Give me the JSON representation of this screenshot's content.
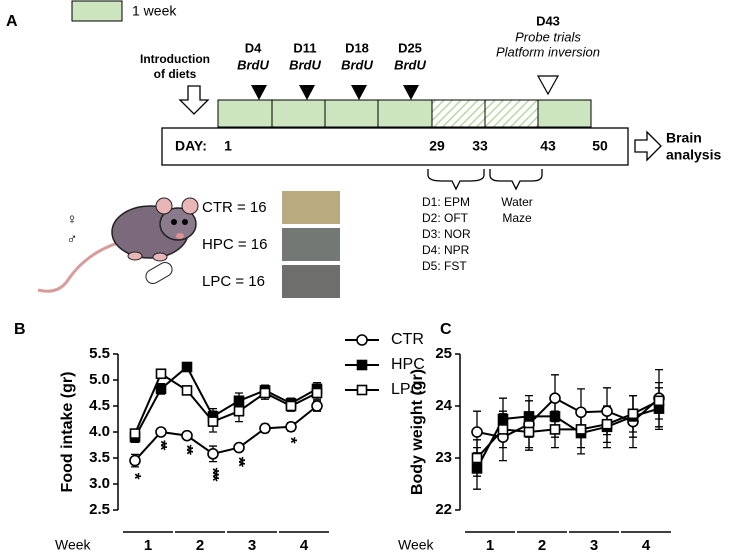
{
  "panel_labels": [
    "A",
    "B",
    "C"
  ],
  "timeline_legend": {
    "text": "1 week",
    "color": "#cde5bf"
  },
  "intro": [
    "Introduction",
    "of diets"
  ],
  "injections": [
    {
      "day": "D4",
      "drug": "BrdU"
    },
    {
      "day": "D11",
      "drug": "BrdU"
    },
    {
      "day": "D18",
      "drug": "BrdU"
    },
    {
      "day": "D25",
      "drug": "BrdU"
    }
  ],
  "probe": {
    "day": "D43",
    "lines": [
      "Probe trials",
      "Platform inversion"
    ]
  },
  "timeline": {
    "label": "DAY:",
    "days": [
      "1",
      "29",
      "33",
      "43",
      "50"
    ]
  },
  "outcome": [
    "Brain",
    "analysis"
  ],
  "behavior_tests": [
    "D1: EPM",
    "D2: OFT",
    "D3: NOR",
    "D4: NPR",
    "D5: FST"
  ],
  "water_maze": [
    "Water",
    "Maze"
  ],
  "groups": [
    "CTR = 16",
    "HPC = 16",
    "LPC = 16"
  ],
  "sexes": [
    "♀",
    "♂"
  ],
  "chart_data": [
    {
      "type": "line",
      "y_label": "Food intake (gr)",
      "categories": [
        null,
        null,
        null,
        null,
        null,
        null,
        null,
        null
      ],
      "x_group_title": "Week",
      "x_groups": [
        "1",
        "2",
        "3",
        "4"
      ],
      "ylim": [
        2.5,
        5.5
      ],
      "yticks": [
        2.5,
        {
          "value": 3,
          "label": "3.0"
        },
        3.5,
        {
          "value": 4,
          "label": "4.0"
        },
        4.5,
        {
          "value": 5,
          "label": "5.0"
        },
        5.5
      ],
      "legend": "top-right",
      "series": [
        {
          "name": "CTR",
          "color": "#000000",
          "marker": "circle",
          "marker_fill": "#ffffff",
          "values": [
            3.45,
            4.0,
            3.93,
            3.58,
            3.7,
            4.07,
            4.1,
            4.5
          ],
          "errors": [
            0.12,
            0.04,
            0.06,
            0.15,
            0.06,
            0.08,
            0.08,
            0.1
          ]
        },
        {
          "name": "HPC",
          "color": "#000000",
          "marker": "square",
          "marker_fill": "#000000",
          "values": [
            3.9,
            4.83,
            5.25,
            4.3,
            4.6,
            4.8,
            4.55,
            4.83
          ],
          "errors": [
            0.1,
            0.1,
            0.08,
            0.15,
            0.15,
            0.1,
            0.1,
            0.12
          ]
        },
        {
          "name": "LPC",
          "color": "#000000",
          "marker": "square",
          "marker_fill": "#ffffff",
          "values": [
            3.97,
            5.12,
            4.8,
            4.2,
            4.4,
            4.75,
            4.5,
            4.75
          ],
          "errors": [
            0.08,
            0.05,
            0.05,
            0.2,
            0.2,
            0.12,
            0.1,
            0.12
          ]
        }
      ],
      "significance": [
        "*",
        "**",
        "**",
        "***",
        "**",
        null,
        "*",
        null
      ]
    },
    {
      "type": "line",
      "y_label": "Body weight (gr)",
      "categories": [
        null,
        null,
        null,
        null,
        null,
        null,
        null,
        null
      ],
      "x_group_title": "Week",
      "x_groups": [
        "1",
        "2",
        "3",
        "4"
      ],
      "ylim": [
        22,
        25
      ],
      "yticks": [
        22,
        23,
        24,
        25
      ],
      "legend": false,
      "series": [
        {
          "name": "CTR",
          "color": "#000000",
          "marker": "circle",
          "marker_fill": "#ffffff",
          "values": [
            23.5,
            23.4,
            23.65,
            24.15,
            23.88,
            23.9,
            23.7,
            24.15
          ],
          "errors": [
            0.4,
            0.45,
            0.45,
            0.45,
            0.45,
            0.45,
            0.5,
            0.55
          ]
        },
        {
          "name": "HPC",
          "color": "#000000",
          "marker": "square",
          "marker_fill": "#000000",
          "values": [
            22.8,
            23.75,
            23.8,
            23.8,
            23.48,
            23.6,
            23.8,
            23.95
          ],
          "errors": [
            0.4,
            0.4,
            0.4,
            0.4,
            0.4,
            0.4,
            0.4,
            0.4
          ]
        },
        {
          "name": "LPC",
          "color": "#000000",
          "marker": "square",
          "marker_fill": "#ffffff",
          "values": [
            23.0,
            23.55,
            23.5,
            23.55,
            23.55,
            23.65,
            23.85,
            24.1
          ],
          "errors": [
            0.35,
            0.35,
            0.35,
            0.35,
            0.35,
            0.35,
            0.35,
            0.35
          ]
        }
      ]
    }
  ]
}
